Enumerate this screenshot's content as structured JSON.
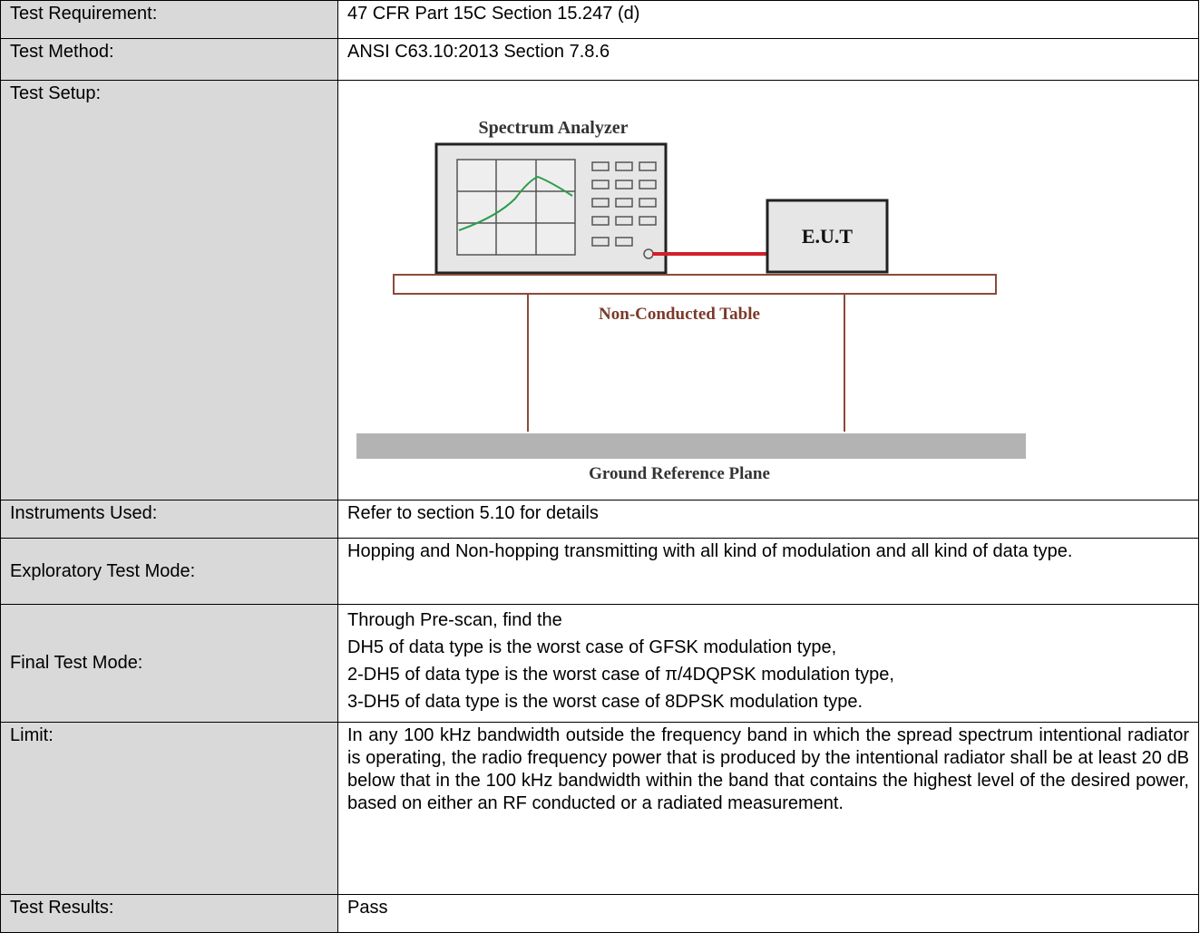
{
  "table": {
    "rows": [
      {
        "label": "Test Requirement:",
        "value": "47 CFR Part 15C Section 15.247 (d)"
      },
      {
        "label": "Test Method:",
        "value": "ANSI C63.10:2013 Section 7.8.6"
      },
      {
        "label": "Test Setup:"
      },
      {
        "label": "Instruments Used:",
        "value": "Refer to section 5.10 for details"
      },
      {
        "label": "Exploratory Test Mode:",
        "value": "Hopping and Non-hopping transmitting with all kind of modulation and all kind of data type."
      },
      {
        "label": "Final Test Mode:",
        "value": [
          "Through Pre-scan, find the",
          "DH5 of data type is the worst case of GFSK modulation type,",
          "2-DH5 of data type is the worst case of π/4DQPSK modulation type,",
          "3-DH5 of data type is the worst case of 8DPSK modulation type."
        ]
      },
      {
        "label": "Limit:",
        "value": "In any 100 kHz bandwidth outside the frequency band in which the spread spectrum intentional radiator is operating, the radio frequency power that is produced by the intentional radiator shall be at least 20 dB below that in the 100 kHz bandwidth within the band that contains the highest level of the desired power, based on either an RF conducted or a radiated measurement."
      },
      {
        "label": "Test Results:",
        "value": "Pass"
      }
    ]
  },
  "diagram": {
    "analyzer": "Spectrum Analyzer",
    "eut": "E.U.T",
    "table": "Non-Conducted Table",
    "ground": "Ground Reference Plane"
  }
}
